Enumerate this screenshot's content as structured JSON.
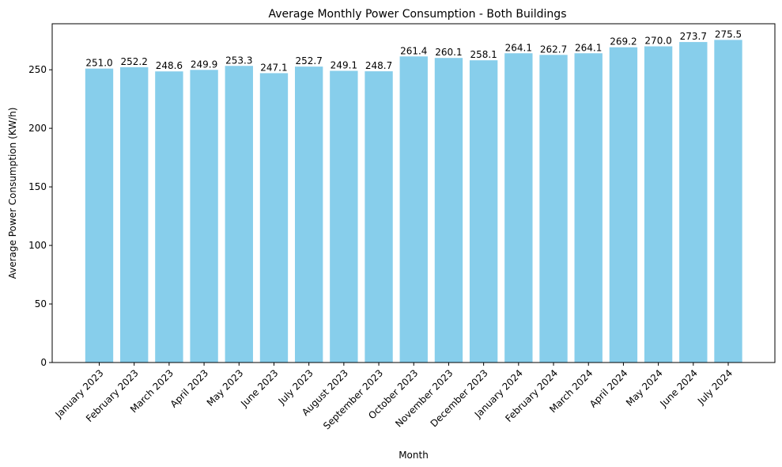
{
  "chart_data": {
    "type": "bar",
    "title": "Average Monthly Power Consumption - Both Buildings",
    "xlabel": "Month",
    "ylabel": "Average Power Consumption (KW/h)",
    "categories": [
      "January 2023",
      "February 2023",
      "March 2023",
      "April 2023",
      "May 2023",
      "June 2023",
      "July 2023",
      "August 2023",
      "September 2023",
      "October 2023",
      "November 2023",
      "December 2023",
      "January 2024",
      "February 2024",
      "March 2024",
      "April 2024",
      "May 2024",
      "June 2024",
      "July 2024"
    ],
    "values": [
      251.0,
      252.2,
      248.6,
      249.9,
      253.3,
      247.1,
      252.7,
      249.1,
      248.7,
      261.4,
      260.1,
      258.1,
      264.1,
      262.7,
      264.1,
      269.2,
      270.0,
      273.7,
      275.5
    ],
    "value_labels": [
      "251.0",
      "252.2",
      "248.6",
      "249.9",
      "253.3",
      "247.1",
      "252.7",
      "249.1",
      "248.7",
      "261.4",
      "260.1",
      "258.1",
      "264.1",
      "262.7",
      "264.1",
      "269.2",
      "270.0",
      "273.7",
      "275.5"
    ],
    "yticks": [
      0,
      50,
      100,
      150,
      200,
      250
    ],
    "ylim": [
      0,
      289.3
    ],
    "bar_color": "#87ceeb",
    "grid": false,
    "legend": "none"
  }
}
